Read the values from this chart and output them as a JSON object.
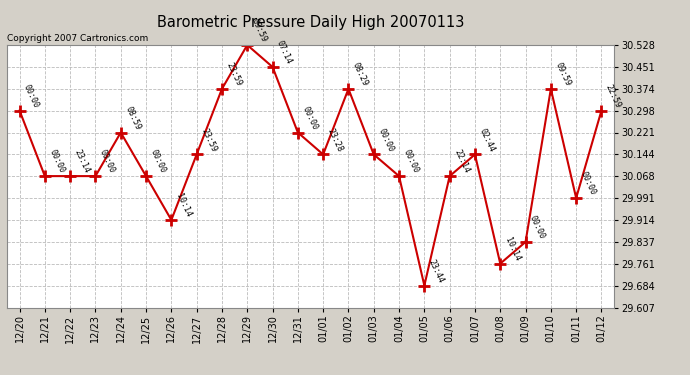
{
  "title": "Barometric Pressure Daily High 20070113",
  "copyright": "Copyright 2007 Cartronics.com",
  "x_labels": [
    "12/20",
    "12/21",
    "12/22",
    "12/23",
    "12/24",
    "12/25",
    "12/26",
    "12/27",
    "12/28",
    "12/29",
    "12/30",
    "12/31",
    "01/01",
    "01/02",
    "01/03",
    "01/04",
    "01/05",
    "01/06",
    "01/07",
    "01/08",
    "01/09",
    "01/10",
    "01/11",
    "01/12"
  ],
  "y_values": [
    30.298,
    30.068,
    30.068,
    30.068,
    30.221,
    30.068,
    29.914,
    30.144,
    30.374,
    30.528,
    30.451,
    30.221,
    30.144,
    30.374,
    30.144,
    30.068,
    29.684,
    30.068,
    30.144,
    29.761,
    29.837,
    30.374,
    29.991,
    30.298
  ],
  "point_labels": [
    "00:00",
    "00:00",
    "23:14",
    "00:00",
    "08:59",
    "00:00",
    "10:14",
    "23:59",
    "23:59",
    "09:59",
    "07:14",
    "00:00",
    "23:28",
    "08:29",
    "00:00",
    "00:00",
    "23:44",
    "22:14",
    "02:44",
    "10:14",
    "00:00",
    "09:59",
    "00:00",
    "22:59"
  ],
  "y_ticks": [
    29.607,
    29.684,
    29.761,
    29.837,
    29.914,
    29.991,
    30.068,
    30.144,
    30.221,
    30.298,
    30.374,
    30.451,
    30.528
  ],
  "ylim_min": 29.607,
  "ylim_max": 30.528,
  "line_color": "#cc0000",
  "marker_color": "#cc0000",
  "grid_color": "#bbbbbb",
  "bg_color": "#d4d0c8",
  "plot_bg_color": "#ffffff"
}
